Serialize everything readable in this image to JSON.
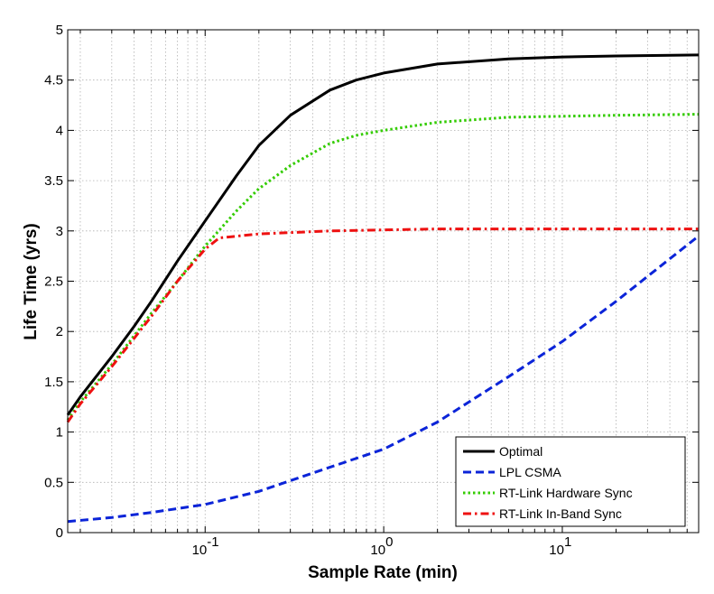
{
  "chart_data": {
    "type": "line",
    "title": "",
    "xlabel": "Sample Rate (min)",
    "ylabel": "Life Time (yrs)",
    "xscale": "log",
    "xlim": [
      0.017,
      58
    ],
    "ylim": [
      0,
      5
    ],
    "grid": true,
    "legend_position": "bottom-right",
    "x_ticks": [
      {
        "value": 0.1,
        "base": "10",
        "exp": "-1"
      },
      {
        "value": 1,
        "base": "10",
        "exp": "0"
      },
      {
        "value": 10,
        "base": "10",
        "exp": "1"
      }
    ],
    "y_ticks": [
      "0",
      "0.5",
      "1",
      "1.5",
      "2",
      "2.5",
      "3",
      "3.5",
      "4",
      "4.5",
      "5"
    ],
    "series": [
      {
        "name": "Optimal",
        "color": "#000000",
        "dash": "solid",
        "x": [
          0.017,
          0.02,
          0.03,
          0.04,
          0.05,
          0.07,
          0.1,
          0.15,
          0.2,
          0.3,
          0.5,
          0.7,
          1,
          2,
          5,
          10,
          20,
          58
        ],
        "y": [
          1.17,
          1.35,
          1.75,
          2.05,
          2.3,
          2.7,
          3.1,
          3.55,
          3.85,
          4.15,
          4.4,
          4.5,
          4.57,
          4.66,
          4.71,
          4.73,
          4.74,
          4.75
        ]
      },
      {
        "name": "LPL CSMA",
        "color": "#0b24d8",
        "dash": "dashed",
        "x": [
          0.017,
          0.03,
          0.05,
          0.1,
          0.2,
          0.5,
          1,
          2,
          5,
          10,
          20,
          58
        ],
        "y": [
          0.11,
          0.15,
          0.2,
          0.28,
          0.41,
          0.65,
          0.83,
          1.1,
          1.55,
          1.9,
          2.3,
          2.95
        ]
      },
      {
        "name": "RT-Link Hardware Sync",
        "color": "#33cc00",
        "dash": "dotted",
        "x": [
          0.017,
          0.02,
          0.03,
          0.05,
          0.07,
          0.1,
          0.15,
          0.2,
          0.3,
          0.5,
          0.7,
          1,
          2,
          5,
          10,
          20,
          58
        ],
        "y": [
          1.12,
          1.3,
          1.67,
          2.18,
          2.5,
          2.85,
          3.2,
          3.42,
          3.65,
          3.87,
          3.95,
          4.0,
          4.08,
          4.13,
          4.14,
          4.15,
          4.16
        ]
      },
      {
        "name": "RT-Link In-Band Sync",
        "color": "#ee1111",
        "dash": "dashdot",
        "x": [
          0.017,
          0.02,
          0.03,
          0.05,
          0.07,
          0.1,
          0.12,
          0.2,
          0.5,
          1,
          2,
          5,
          10,
          58
        ],
        "y": [
          1.1,
          1.28,
          1.65,
          2.15,
          2.5,
          2.82,
          2.93,
          2.97,
          3.0,
          3.01,
          3.02,
          3.02,
          3.02,
          3.02
        ]
      }
    ]
  }
}
